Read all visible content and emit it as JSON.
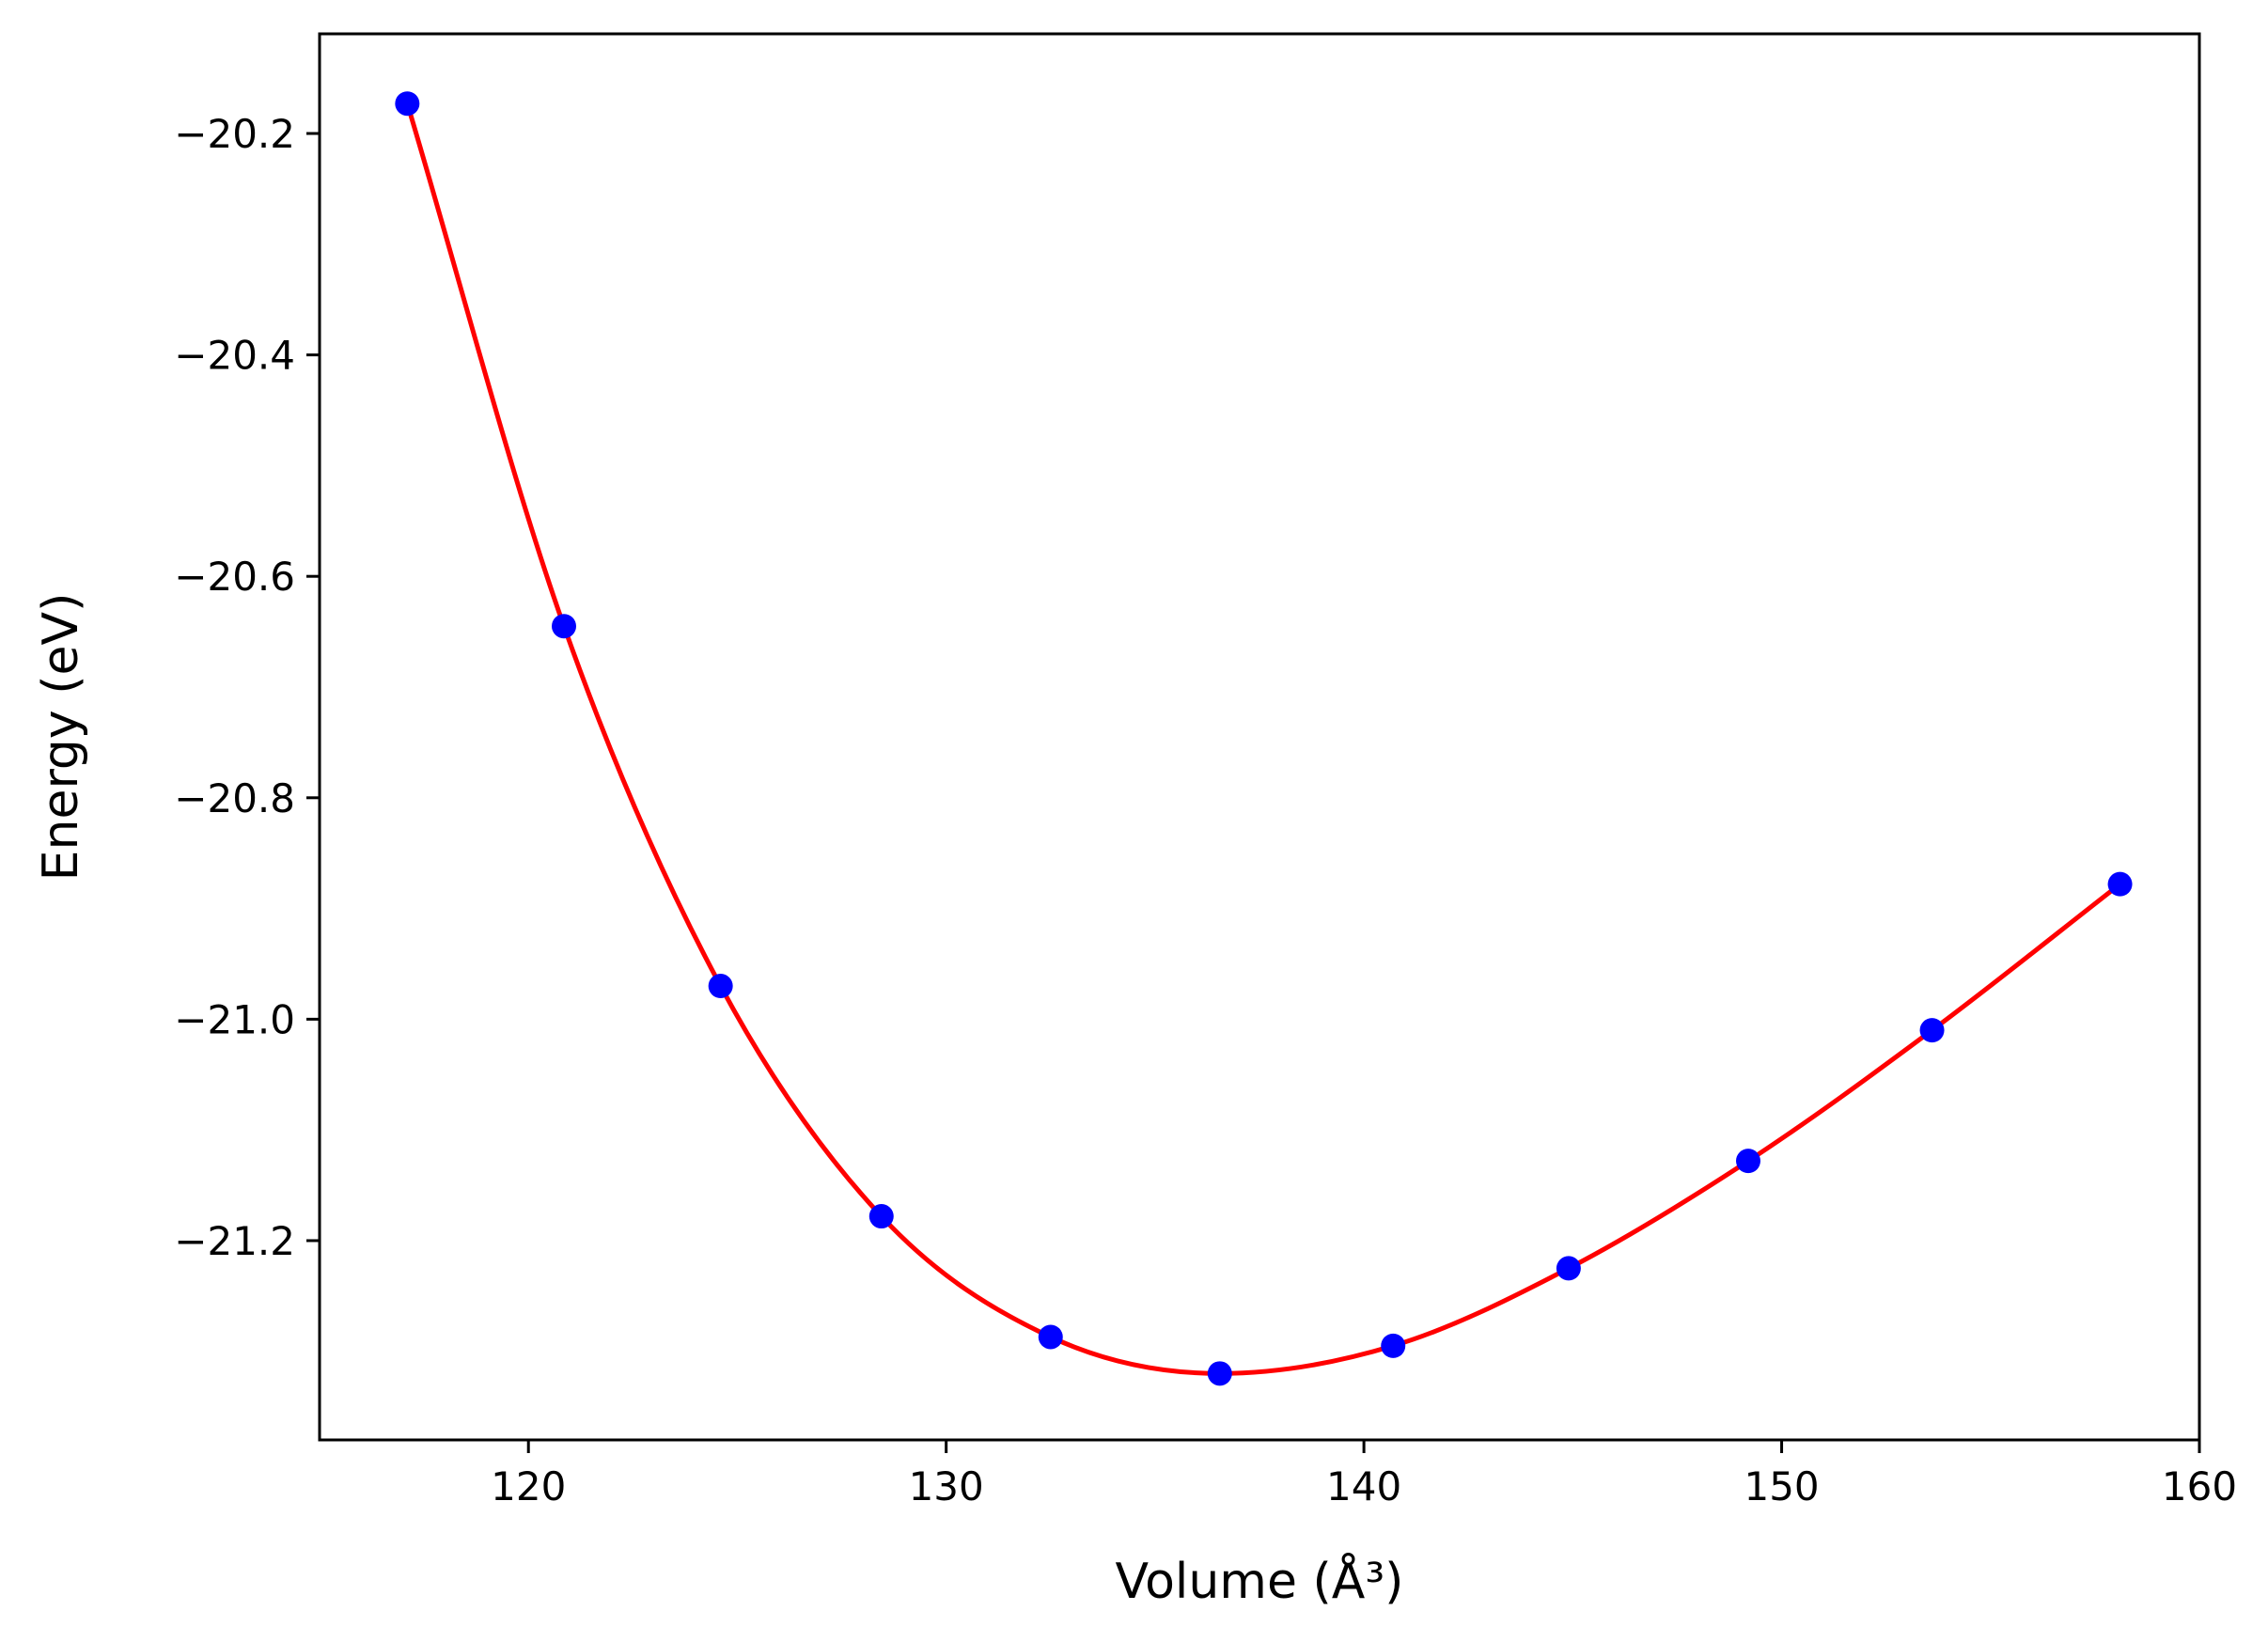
{
  "chart_data": {
    "type": "scatter",
    "title": "",
    "xlabel": "Volume (Å³)",
    "ylabel": "Energy (eV)",
    "xlim": [
      115,
      160
    ],
    "ylim": [
      -21.38,
      -20.11
    ],
    "x_ticks": [
      120,
      130,
      140,
      150,
      160
    ],
    "y_ticks": [
      -20.2,
      -20.4,
      -20.6,
      -20.8,
      -21.0,
      -21.2
    ],
    "x_tick_labels": [
      "120",
      "130",
      "140",
      "150",
      "160"
    ],
    "y_tick_labels": [
      "−20.2",
      "−20.4",
      "−20.6",
      "−20.8",
      "−21.0",
      "−21.2"
    ],
    "grid": false,
    "series": [
      {
        "kind": "points",
        "color": "#0000ff",
        "x": [
          117.1,
          120.85,
          124.6,
          128.45,
          132.5,
          136.55,
          140.7,
          144.9,
          149.2,
          153.6,
          158.1
        ],
        "y": [
          -20.173,
          -20.645,
          -20.97,
          -21.178,
          -21.287,
          -21.32,
          -21.295,
          -21.225,
          -21.128,
          -21.01,
          -20.878
        ]
      },
      {
        "kind": "fit-curve",
        "color": "#ff0000",
        "x": [
          117.1,
          120.85,
          124.6,
          128.45,
          132.5,
          136.55,
          140.7,
          144.9,
          149.2,
          153.6,
          158.1
        ],
        "y": [
          -20.173,
          -20.645,
          -20.97,
          -21.178,
          -21.287,
          -21.32,
          -21.295,
          -21.225,
          -21.128,
          -21.01,
          -20.878
        ]
      }
    ]
  }
}
